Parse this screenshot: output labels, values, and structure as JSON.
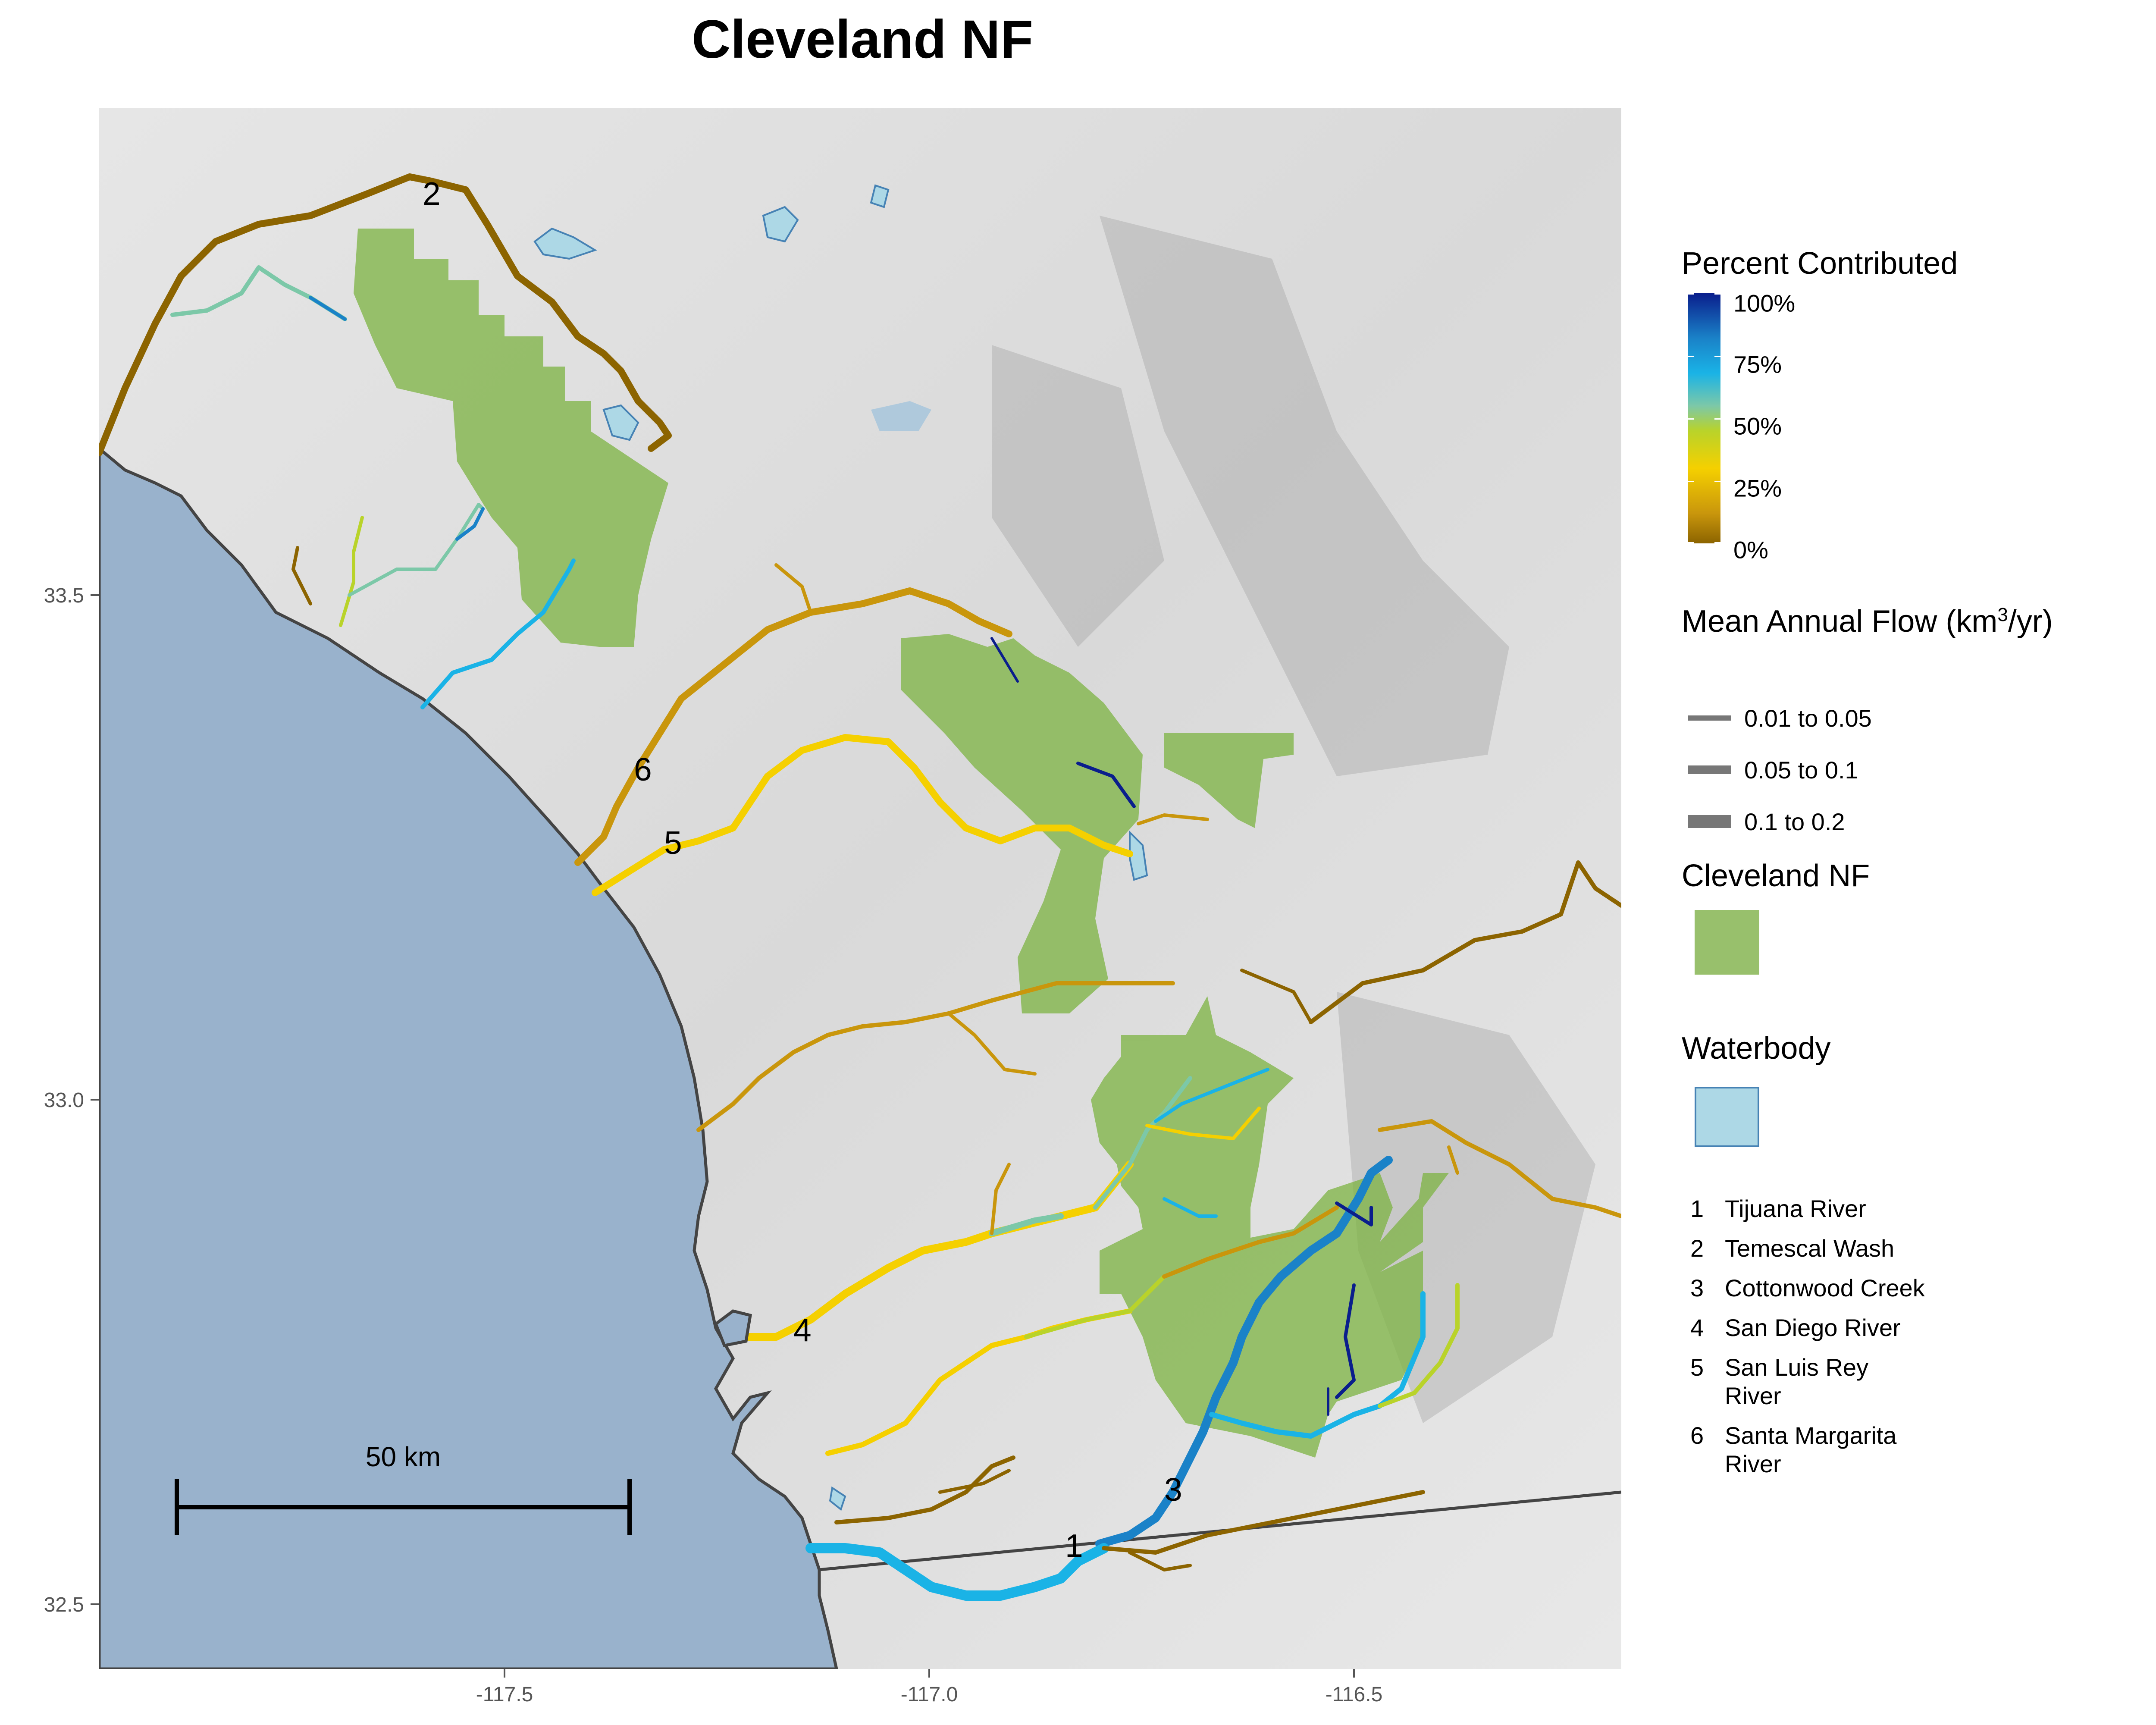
{
  "title": "Cleveland NF",
  "axes": {
    "x_ticks": [
      "-117.5",
      "-117.0",
      "-116.5"
    ],
    "y_ticks": [
      "33.5",
      "33.0",
      "32.5"
    ]
  },
  "scale_bar": {
    "label": "50 km"
  },
  "legend": {
    "percent": {
      "title": "Percent Contributed",
      "labels": [
        "100%",
        "75%",
        "50%",
        "25%",
        "0%"
      ]
    },
    "flow": {
      "title_pre": "Mean Annual Flow (km",
      "title_sup": "3",
      "title_post": "/yr)",
      "items": [
        "0.01  to  0.05",
        "0.05  to  0.1",
        "0.1  to  0.2"
      ]
    },
    "forest": {
      "title": "Cleveland NF"
    },
    "water": {
      "title": "Waterbody"
    }
  },
  "rivers": [
    {
      "num": "1",
      "name": "Tijuana River",
      "line2": ""
    },
    {
      "num": "2",
      "name": "Temescal Wash",
      "line2": ""
    },
    {
      "num": "3",
      "name": "Cottonwood Creek",
      "line2": ""
    },
    {
      "num": "4",
      "name": "San Diego River",
      "line2": ""
    },
    {
      "num": "5",
      "name": "San Luis Rey",
      "line2": "River"
    },
    {
      "num": "6",
      "name": "Santa Margarita",
      "line2": "River"
    }
  ],
  "colors": {
    "ocean": "#99b2cc",
    "forest": "#7cb342",
    "waterbody": "#add8e6",
    "terrain": "#dcdcdc",
    "low_pct": "#8c6400",
    "mid_pct": "#f5d000",
    "high_pct": "#0a1e8c"
  }
}
